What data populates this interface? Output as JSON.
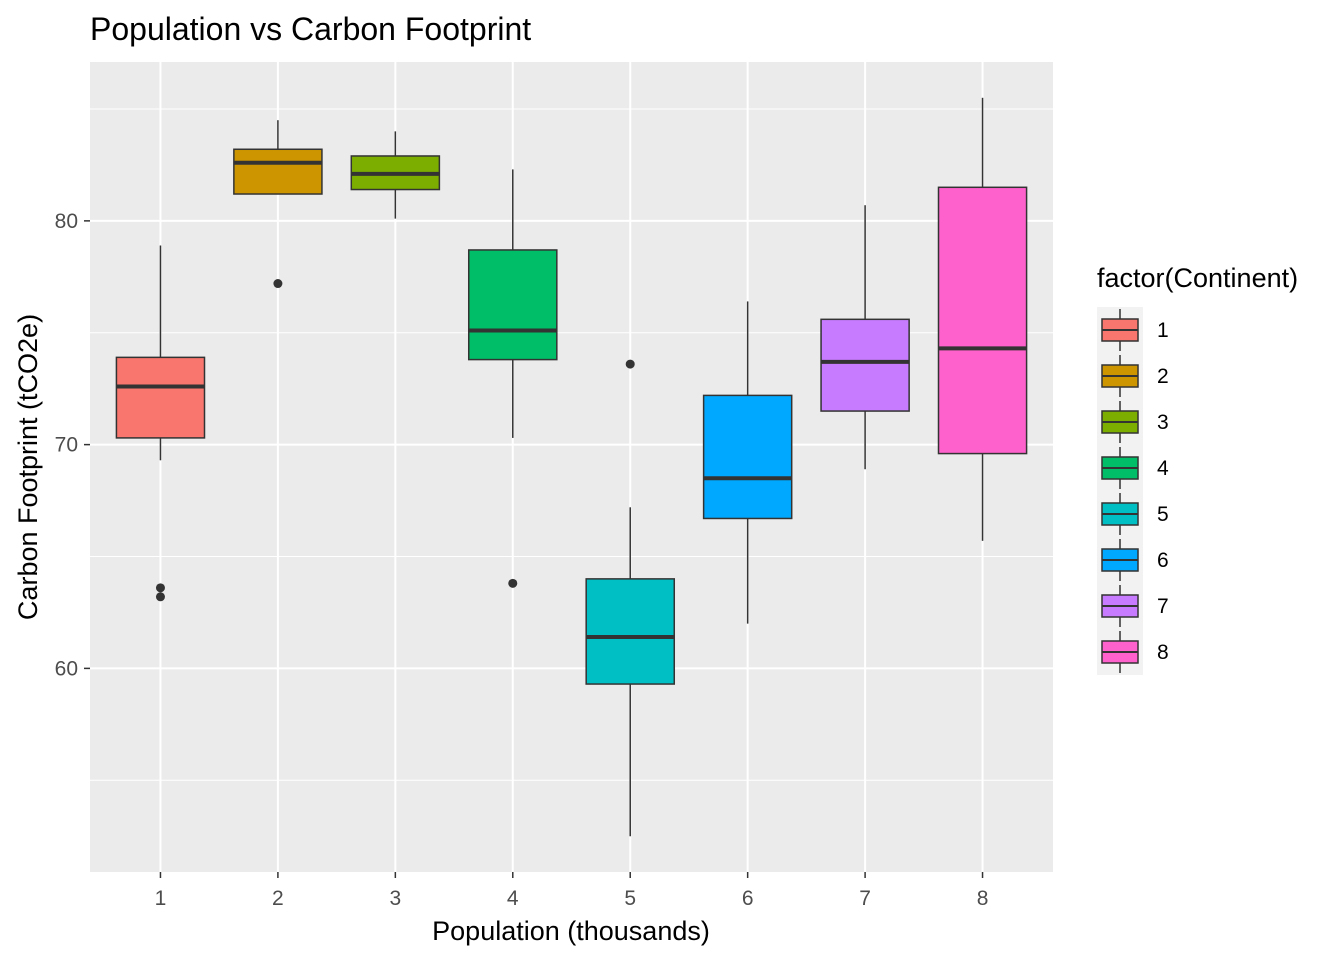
{
  "chart_data": {
    "type": "boxplot",
    "title": "Population vs Carbon Footprint",
    "xlabel": "Population (thousands)",
    "ylabel": "Carbon Footprint (tCO2e)",
    "categories": [
      "1",
      "2",
      "3",
      "4",
      "5",
      "6",
      "7",
      "8"
    ],
    "yticks": [
      60,
      70,
      80
    ],
    "ylim": [
      50.9,
      87.1
    ],
    "grid": true,
    "legend": {
      "title": "factor(Continent)",
      "placement": "right",
      "entries": [
        "1",
        "2",
        "3",
        "4",
        "5",
        "6",
        "7",
        "8"
      ]
    },
    "boxes": [
      {
        "category": "1",
        "lower_whisker": 69.3,
        "q1": 70.3,
        "median": 72.6,
        "q3": 73.9,
        "upper_whisker": 78.9,
        "outliers": [
          63.6,
          63.2
        ],
        "color": "#F8766D"
      },
      {
        "category": "2",
        "lower_whisker": 81.2,
        "q1": 81.2,
        "median": 82.6,
        "q3": 83.2,
        "upper_whisker": 84.5,
        "outliers": [
          77.2
        ],
        "color": "#CD9600"
      },
      {
        "category": "3",
        "lower_whisker": 80.1,
        "q1": 81.4,
        "median": 82.1,
        "q3": 82.9,
        "upper_whisker": 84.0,
        "outliers": [],
        "color": "#7CAE00"
      },
      {
        "category": "4",
        "lower_whisker": 70.3,
        "q1": 73.8,
        "median": 75.1,
        "q3": 78.7,
        "upper_whisker": 82.3,
        "outliers": [
          63.8
        ],
        "color": "#00BE67"
      },
      {
        "category": "5",
        "lower_whisker": 52.5,
        "q1": 59.3,
        "median": 61.4,
        "q3": 64.0,
        "upper_whisker": 67.2,
        "outliers": [
          73.6
        ],
        "color": "#00BFC4"
      },
      {
        "category": "6",
        "lower_whisker": 62.0,
        "q1": 66.7,
        "median": 68.5,
        "q3": 72.2,
        "upper_whisker": 76.4,
        "outliers": [],
        "color": "#00A9FF"
      },
      {
        "category": "7",
        "lower_whisker": 68.9,
        "q1": 71.5,
        "median": 73.7,
        "q3": 75.6,
        "upper_whisker": 80.7,
        "outliers": [],
        "color": "#C77CFF"
      },
      {
        "category": "8",
        "lower_whisker": 65.7,
        "q1": 69.6,
        "median": 74.3,
        "q3": 81.5,
        "upper_whisker": 85.5,
        "outliers": [],
        "color": "#FF61CC"
      }
    ]
  }
}
